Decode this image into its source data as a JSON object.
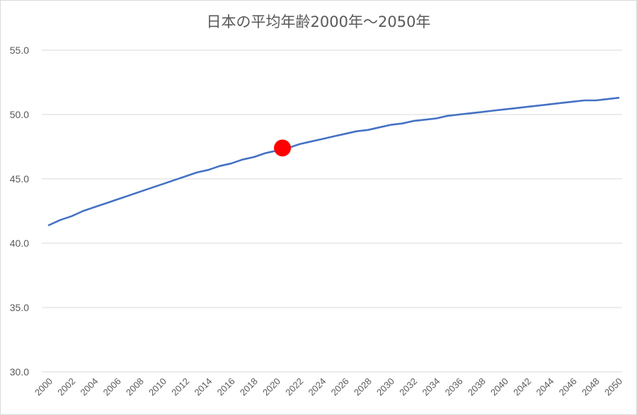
{
  "chart_data": {
    "type": "line",
    "title": "日本の平均年齢2000年～2050年",
    "xlabel": "",
    "ylabel": "",
    "ylim": [
      30,
      55
    ],
    "xlim": [
      2000,
      2050
    ],
    "grid": true,
    "y_ticks": [
      "30.0",
      "35.0",
      "40.0",
      "45.0",
      "50.0",
      "55.0"
    ],
    "x_ticks": [
      "2000",
      "2002",
      "2004",
      "2006",
      "2008",
      "2010",
      "2012",
      "2014",
      "2016",
      "2018",
      "2020",
      "2022",
      "2024",
      "2026",
      "2028",
      "2030",
      "2032",
      "2034",
      "2036",
      "2038",
      "2040",
      "2042",
      "2044",
      "2046",
      "2048",
      "2050"
    ],
    "line_color": "#4472c4",
    "highlight_color": "#ff0000",
    "highlight_point": {
      "x": 2020.5,
      "y": 47.4
    },
    "series": [
      {
        "x": [
          2000,
          2001,
          2002,
          2003,
          2004,
          2005,
          2006,
          2007,
          2008,
          2009,
          2010,
          2011,
          2012,
          2013,
          2014,
          2015,
          2016,
          2017,
          2018,
          2019,
          2020,
          2021,
          2022,
          2023,
          2024,
          2025,
          2026,
          2027,
          2028,
          2029,
          2030,
          2031,
          2032,
          2033,
          2034,
          2035,
          2036,
          2037,
          2038,
          2039,
          2040,
          2041,
          2042,
          2043,
          2044,
          2045,
          2046,
          2047,
          2048,
          2049,
          2050
        ],
        "values": [
          41.4,
          41.8,
          42.1,
          42.5,
          42.8,
          43.1,
          43.4,
          43.7,
          44.0,
          44.3,
          44.6,
          44.9,
          45.2,
          45.5,
          45.7,
          46.0,
          46.2,
          46.5,
          46.7,
          47.0,
          47.2,
          47.4,
          47.7,
          47.9,
          48.1,
          48.3,
          48.5,
          48.7,
          48.8,
          49.0,
          49.2,
          49.3,
          49.5,
          49.6,
          49.7,
          49.9,
          50.0,
          50.1,
          50.2,
          50.3,
          50.4,
          50.5,
          50.6,
          50.7,
          50.8,
          50.9,
          51.0,
          51.1,
          51.1,
          51.2,
          51.3
        ]
      }
    ]
  }
}
